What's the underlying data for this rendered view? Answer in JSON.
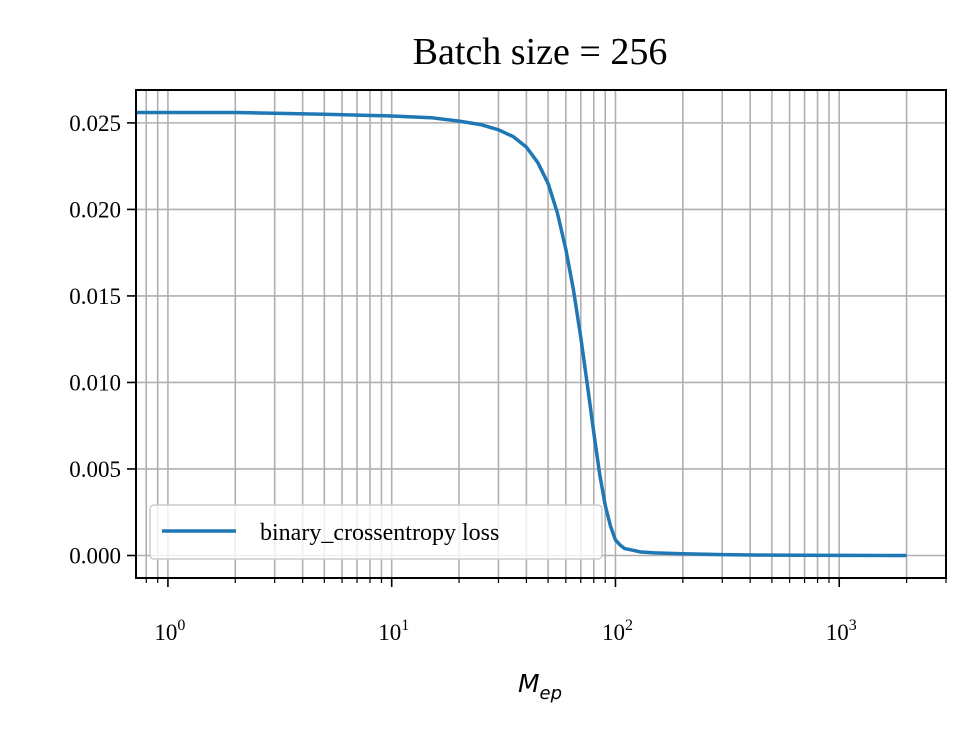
{
  "chart_data": {
    "type": "line",
    "title": "Batch size = 256",
    "xlabel_base": "M",
    "xlabel_sub": "ep",
    "ylabel": "",
    "xscale": "log",
    "xlim": [
      0.72,
      3000
    ],
    "ylim": [
      -0.0013,
      0.0269
    ],
    "grid": "major and minor, both axes",
    "legend_position": "lower-left",
    "yticks": [
      {
        "value": 0.0,
        "label": "0.000"
      },
      {
        "value": 0.005,
        "label": "0.005"
      },
      {
        "value": 0.01,
        "label": "0.010"
      },
      {
        "value": 0.015,
        "label": "0.015"
      },
      {
        "value": 0.02,
        "label": "0.020"
      },
      {
        "value": 0.025,
        "label": "0.025"
      }
    ],
    "xticks": [
      {
        "value": 1,
        "base": "10",
        "exp": "0"
      },
      {
        "value": 10,
        "base": "10",
        "exp": "1"
      },
      {
        "value": 100,
        "base": "10",
        "exp": "2"
      },
      {
        "value": 1000,
        "base": "10",
        "exp": "3"
      }
    ],
    "series": [
      {
        "name": "binary_crossentropy loss",
        "color": "#1f77b4",
        "x": [
          0.72,
          1,
          2,
          5,
          10,
          15,
          20,
          25,
          30,
          35,
          40,
          45,
          50,
          55,
          60,
          65,
          70,
          75,
          80,
          85,
          90,
          95,
          100,
          105,
          110,
          120,
          130,
          150,
          200,
          300,
          500,
          1000,
          2000
        ],
        "y": [
          0.0256,
          0.0256,
          0.0256,
          0.0255,
          0.0254,
          0.0253,
          0.0251,
          0.0249,
          0.0246,
          0.0242,
          0.0236,
          0.0227,
          0.0215,
          0.0198,
          0.0177,
          0.0153,
          0.0126,
          0.0098,
          0.0071,
          0.0047,
          0.0029,
          0.0017,
          0.0009,
          0.0006,
          0.0004,
          0.0003,
          0.0002,
          0.00015,
          0.0001,
          5e-05,
          2e-05,
          1e-05,
          0.0
        ]
      }
    ]
  }
}
